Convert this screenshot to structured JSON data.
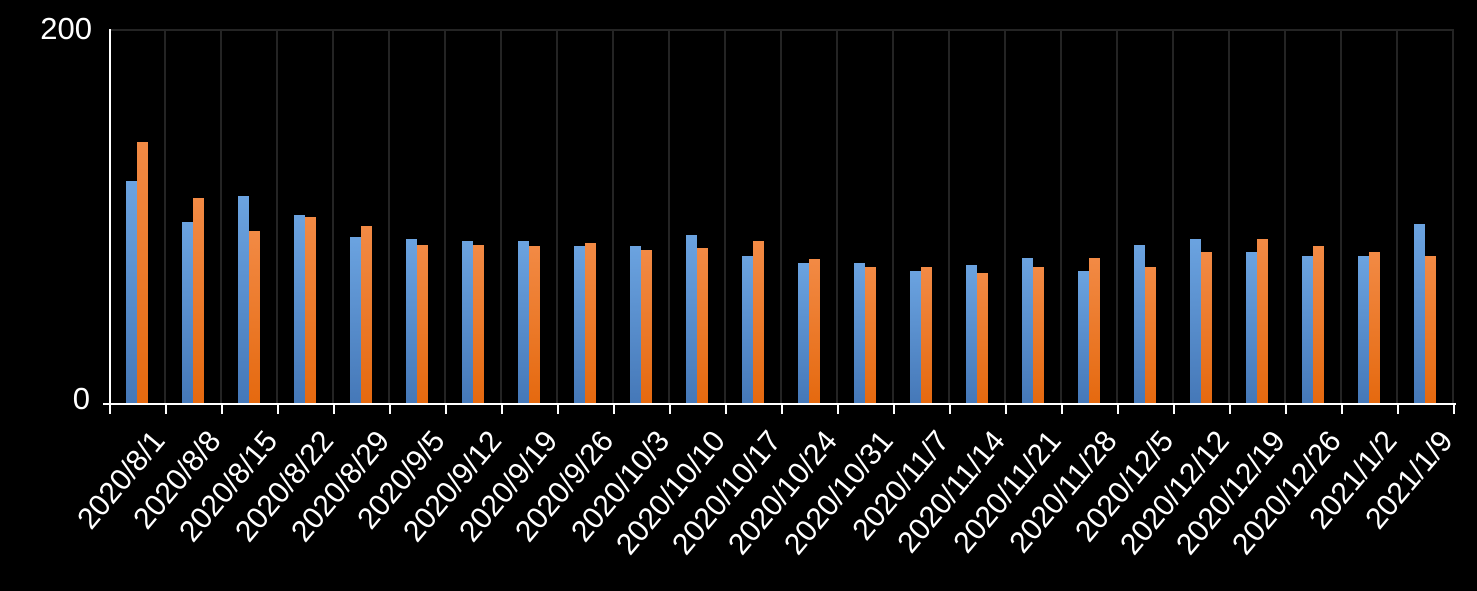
{
  "y_axis": {
    "max_label": "200",
    "min_label": "0"
  },
  "chart_data": {
    "type": "bar",
    "title": "",
    "xlabel": "",
    "ylabel": "",
    "ylim": [
      0,
      200
    ],
    "ytick_labels": [
      "0",
      "200"
    ],
    "legend_position": "none",
    "grid": "vertical category gridlines only",
    "background_color": "#000000",
    "axis_color": "#FFFFFF",
    "gridline_color": "#242424",
    "categories": [
      "2020/8/1",
      "2020/8/8",
      "2020/8/15",
      "2020/8/22",
      "2020/8/29",
      "2020/9/5",
      "2020/9/12",
      "2020/9/19",
      "2020/9/26",
      "2020/10/3",
      "2020/10/10",
      "2020/10/17",
      "2020/10/24",
      "2020/10/31",
      "2020/11/7",
      "2020/11/14",
      "2020/11/21",
      "2020/11/28",
      "2020/12/5",
      "2020/12/12",
      "2020/12/19",
      "2020/12/26",
      "2021/1/2",
      "2021/1/9"
    ],
    "series": [
      {
        "name": "series-blue",
        "color": "#5B9BD5",
        "values": [
          119,
          97,
          111,
          101,
          89,
          88,
          87,
          87,
          84,
          84,
          90,
          79,
          75,
          75,
          71,
          74,
          78,
          71,
          85,
          88,
          81,
          79,
          79,
          96
        ]
      },
      {
        "name": "series-orange",
        "color": "#ED7D31",
        "values": [
          140,
          110,
          92,
          100,
          95,
          85,
          85,
          84,
          86,
          82,
          83,
          87,
          77,
          73,
          73,
          70,
          73,
          78,
          73,
          81,
          88,
          84,
          81,
          79
        ]
      }
    ]
  }
}
